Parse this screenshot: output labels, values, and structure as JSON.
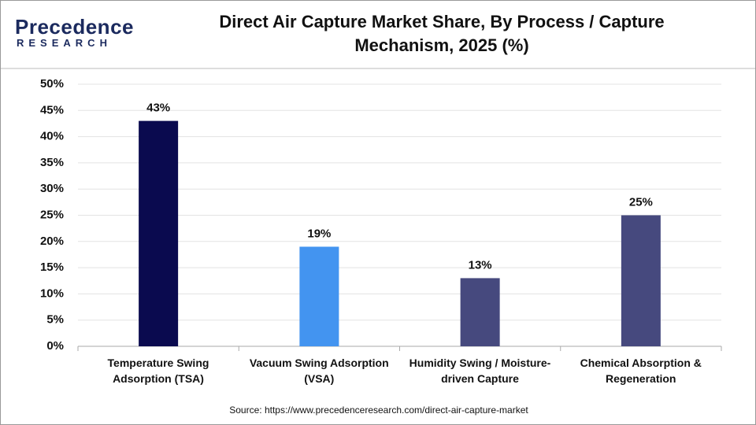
{
  "logo": {
    "name": "Precedence",
    "tagline": "RESEARCH"
  },
  "chart_data": {
    "type": "bar",
    "title": "Direct Air Capture Market Share, By Process / Capture Mechanism, 2025 (%)",
    "categories": [
      "Temperature Swing Adsorption (TSA)",
      "Vacuum Swing Adsorption (VSA)",
      "Humidity Swing / Moisture-driven Capture",
      "Chemical Absorption & Regeneration"
    ],
    "values": [
      43,
      19,
      13,
      25
    ],
    "value_labels": [
      "43%",
      "19%",
      "13%",
      "25%"
    ],
    "colors": [
      "#0a0a4f",
      "#4394f0",
      "#46497e",
      "#46497e"
    ],
    "ylim": [
      0,
      50
    ],
    "yticks": [
      {
        "value": 0,
        "label": "0%"
      },
      {
        "value": 5,
        "label": "5%"
      },
      {
        "value": 10,
        "label": "10%"
      },
      {
        "value": 15,
        "label": "15%"
      },
      {
        "value": 20,
        "label": "20%"
      },
      {
        "value": 25,
        "label": "25%"
      },
      {
        "value": 30,
        "label": "30%"
      },
      {
        "value": 35,
        "label": "35%"
      },
      {
        "value": 40,
        "label": "40%"
      },
      {
        "value": 45,
        "label": "45%"
      },
      {
        "value": 50,
        "label": "50%"
      }
    ],
    "grid": true,
    "source": "Source: https://www.precedenceresearch.com/direct-air-capture-market"
  }
}
